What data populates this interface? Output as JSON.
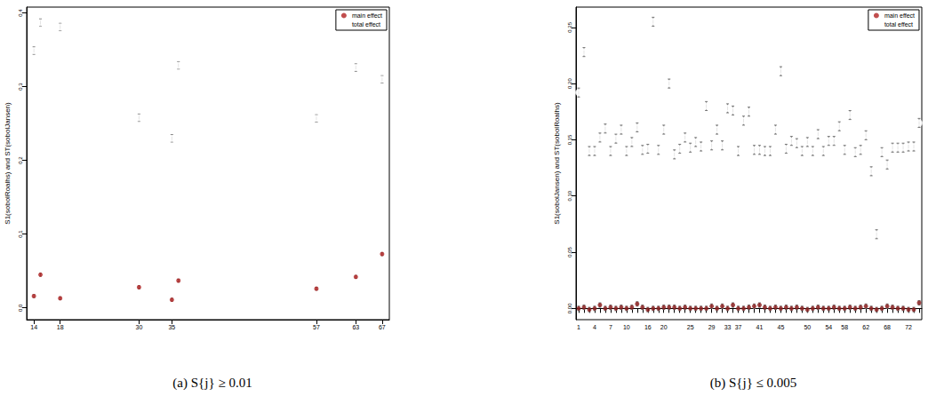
{
  "chart_data": [
    {
      "type": "scatter",
      "title": "(a) S{j} ≥ 0.01",
      "y_label": "S1(sobolRoalhs) and ST(sobolJansen)",
      "x": [
        14,
        15,
        18,
        30,
        35,
        36,
        57,
        63,
        67
      ],
      "xlim": [
        12.9,
        68.1
      ],
      "xticks": [
        14,
        18,
        30,
        35,
        57,
        63,
        67
      ],
      "ylim": [
        -0.016,
        0.408
      ],
      "yticks": [
        {
          "value": 0,
          "label": "0.0"
        },
        0.1,
        0.2,
        0.3,
        0.4
      ],
      "grid": false,
      "legend": "upper right",
      "series": [
        {
          "name": "main effect",
          "color": "#b22222",
          "marker": "circle",
          "values": [
            0.016,
            0.045,
            0.013,
            0.028,
            0.011,
            0.037,
            0.026,
            0.042,
            0.073
          ],
          "error": 0.002
        },
        {
          "name": "total effect",
          "color": "#000000",
          "marker": "open circle",
          "values": [
            0.349,
            0.387,
            0.381,
            0.258,
            0.23,
            0.329,
            0.257,
            0.326,
            0.31
          ],
          "error": 0.005
        }
      ]
    },
    {
      "type": "scatter",
      "title": "(b) S{j} ≤ 0.005",
      "y_label": "S1(sobolJansen) and ST(sobolRoalhs)",
      "categories": [
        "1",
        null,
        null,
        "4",
        null,
        null,
        "7",
        null,
        null,
        "10",
        null,
        null,
        null,
        "16",
        null,
        null,
        "20",
        null,
        null,
        null,
        null,
        "25",
        null,
        null,
        null,
        "29",
        null,
        null,
        "33",
        null,
        "37",
        null,
        null,
        null,
        "41",
        null,
        null,
        null,
        "45",
        null,
        null,
        null,
        null,
        "50",
        null,
        null,
        null,
        "54",
        null,
        null,
        "58",
        null,
        null,
        null,
        "62",
        null,
        null,
        null,
        "68",
        null,
        null,
        null,
        "72",
        null,
        null
      ],
      "ylim": [
        -0.01,
        0.268
      ],
      "yticks": [
        {
          "value": 0,
          "label": "0.00"
        },
        0.05,
        {
          "value": 0.1,
          "label": "0.10"
        },
        0.15,
        {
          "value": 0.2,
          "label": "0.20"
        },
        0.25
      ],
      "grid": false,
      "legend": "upper right",
      "series": [
        {
          "name": "main effect",
          "color": "#8b1a1a",
          "marker": "circle",
          "values": [
            0.0,
            0.001,
            -0.001,
            0.0,
            0.003,
            0.0,
            0.001,
            0.0,
            0.001,
            0.0,
            0.001,
            0.004,
            0.001,
            -0.001,
            0.0,
            0.0,
            0.001,
            0.001,
            0.001,
            0.0,
            0.001,
            0.0,
            0.0,
            0.0,
            0.0,
            0.002,
            0.0,
            0.002,
            0.0,
            0.003,
            0.0,
            0.0,
            0.001,
            0.002,
            0.003,
            0.001,
            0.0,
            0.001,
            0.0,
            0.001,
            0.0,
            0.001,
            0.0,
            -0.001,
            0.0,
            0.001,
            0.0,
            0.0,
            0.001,
            0.0,
            0.0,
            0.001,
            0.0,
            0.001,
            0.002,
            0.0,
            -0.001,
            0.0,
            0.002,
            0.001,
            0.0,
            0.0,
            -0.001,
            -0.001,
            0.005
          ],
          "error": 0.002
        },
        {
          "name": "total effect",
          "color": "#000000",
          "marker": "open circle",
          "values": [
            0.192,
            0.228,
            0.14,
            0.14,
            0.152,
            0.16,
            0.14,
            0.151,
            0.159,
            0.14,
            0.148,
            0.161,
            0.141,
            0.142,
            0.255,
            0.141,
            0.159,
            0.2,
            0.137,
            0.142,
            0.152,
            0.143,
            0.148,
            0.144,
            0.18,
            0.145,
            0.159,
            0.145,
            0.178,
            0.176,
            0.14,
            0.167,
            0.175,
            0.141,
            0.141,
            0.14,
            0.14,
            0.159,
            0.211,
            0.142,
            0.149,
            0.147,
            0.14,
            0.148,
            0.14,
            0.155,
            0.14,
            0.149,
            0.149,
            0.162,
            0.141,
            0.172,
            0.139,
            0.141,
            0.154,
            0.122,
            0.066,
            0.139,
            0.128,
            0.143,
            0.143,
            0.143,
            0.144,
            0.144,
            0.165
          ],
          "error": 0.004
        }
      ]
    }
  ]
}
